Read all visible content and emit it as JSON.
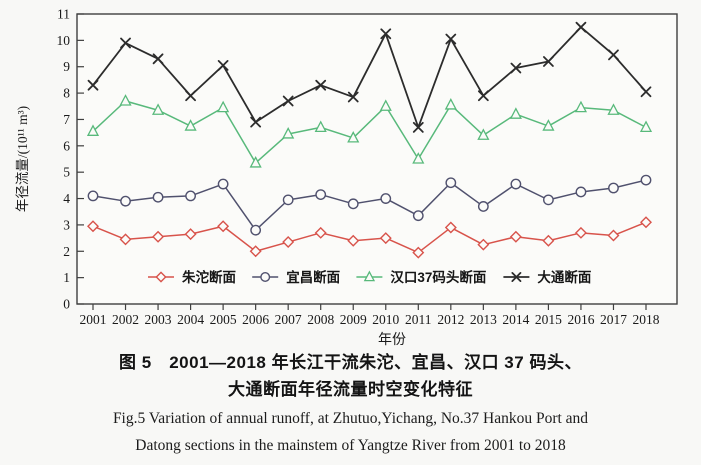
{
  "figure": {
    "caption_zh_line1": "图 5　2001—2018 年长江干流朱沱、宜昌、汉口 37 码头、",
    "caption_zh_line2": "大通断面年径流量时空变化特征",
    "caption_en_line1": "Fig.5 Variation of annual runoff, at Zhutuo,Yichang, No.37 Hankou Port and",
    "caption_en_line2": "Datong sections in the mainstem of Yangtze River from 2001 to 2018"
  },
  "chart_data": {
    "type": "line",
    "title": "",
    "xlabel": "年份",
    "ylabel": "年径流量/(10¹¹ m³)",
    "x": [
      2001,
      2002,
      2003,
      2004,
      2005,
      2006,
      2007,
      2008,
      2009,
      2010,
      2011,
      2012,
      2013,
      2014,
      2015,
      2016,
      2017,
      2018
    ],
    "ylim": [
      0,
      11
    ],
    "ytick_step": 1,
    "grid": false,
    "legend_position": "inside-bottom",
    "colors": {
      "frame": "#3f3f3f",
      "plot_background": "#fbfbf9",
      "tick_text": "#1a1a1a"
    },
    "series": [
      {
        "key": "zhutuo",
        "name": "朱沱断面",
        "marker": "diamond",
        "color": "#d8534b",
        "values": [
          2.95,
          2.45,
          2.55,
          2.65,
          2.95,
          2.0,
          2.35,
          2.7,
          2.4,
          2.5,
          1.95,
          2.9,
          2.25,
          2.55,
          2.4,
          2.7,
          2.6,
          3.1
        ]
      },
      {
        "key": "yichang",
        "name": "宜昌断面",
        "marker": "circle",
        "color": "#50516e",
        "values": [
          4.1,
          3.9,
          4.05,
          4.1,
          4.55,
          2.8,
          3.95,
          4.15,
          3.8,
          4.0,
          3.35,
          4.6,
          3.7,
          4.55,
          3.95,
          4.25,
          4.4,
          4.7
        ]
      },
      {
        "key": "hankou37",
        "name": "汉口37码头断面",
        "marker": "triangle",
        "color": "#58b97b",
        "values": [
          6.55,
          7.7,
          7.35,
          6.75,
          7.45,
          5.35,
          6.45,
          6.7,
          6.3,
          7.5,
          5.5,
          7.55,
          6.4,
          7.2,
          6.75,
          7.45,
          7.35,
          6.7
        ]
      },
      {
        "key": "datong",
        "name": "大通断面",
        "marker": "x",
        "color": "#2c2c2c",
        "values": [
          8.3,
          9.9,
          9.3,
          7.9,
          9.05,
          6.9,
          7.7,
          8.3,
          7.85,
          10.25,
          6.7,
          10.05,
          7.9,
          8.95,
          9.2,
          10.5,
          9.45,
          8.05
        ]
      }
    ]
  }
}
